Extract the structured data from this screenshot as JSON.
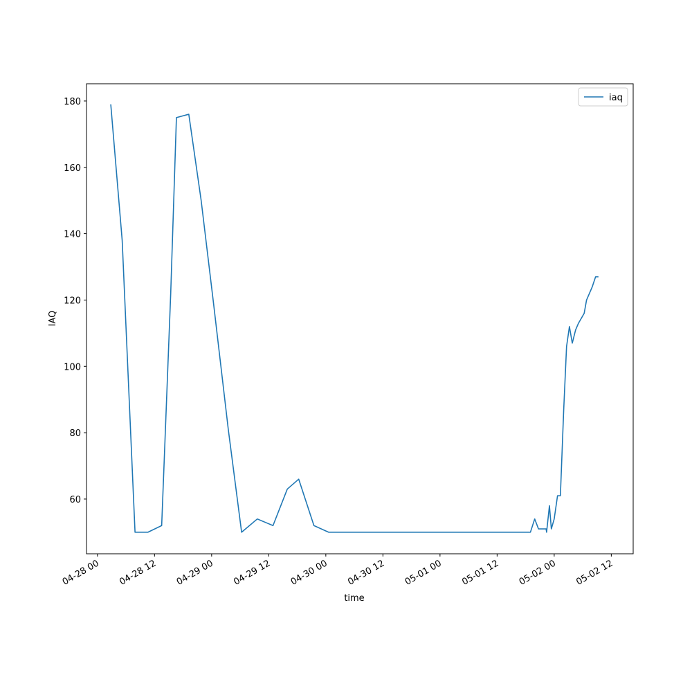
{
  "chart_data": {
    "type": "line",
    "x_label": "time",
    "y_label": "IAQ",
    "x": [
      "04-28 02:48",
      "04-28 05:12",
      "04-28 07:54",
      "04-28 10:36",
      "04-28 13:30",
      "04-28 15:24",
      "04-28 16:36",
      "04-28 19:12",
      "04-28 21:48",
      "04-29 00:24",
      "04-29 03:30",
      "04-29 06:18",
      "04-29 09:36",
      "04-29 12:54",
      "04-29 15:54",
      "04-29 18:18",
      "04-29 21:30",
      "04-30 00:36",
      "05-01 19:00",
      "05-01 19:54",
      "05-01 20:42",
      "05-01 21:48",
      "05-01 22:18",
      "05-01 22:24",
      "05-01 23:00",
      "05-01 23:24",
      "05-02 00:00",
      "05-02 00:42",
      "05-02 01:18",
      "05-02 02:00",
      "05-02 02:36",
      "05-02 03:12",
      "05-02 03:48",
      "05-02 04:30",
      "05-02 05:06",
      "05-02 06:18",
      "05-02 06:48",
      "05-02 08:00",
      "05-02 08:42",
      "05-02 09:18"
    ],
    "series": [
      {
        "name": "iaq",
        "color": "#1f77b4",
        "values": [
          179,
          138,
          50,
          50,
          52,
          122,
          175,
          176,
          150,
          119,
          81,
          50,
          54,
          52,
          63,
          66,
          52,
          50,
          50,
          54,
          51,
          51,
          51,
          50,
          58,
          51,
          54,
          61,
          61,
          87,
          106,
          112,
          107,
          111,
          113,
          116,
          120,
          124,
          127,
          127
        ]
      }
    ],
    "xlim": [
      "04-27 21:42",
      "05-02 16:36"
    ],
    "xticks": [
      "04-28 00",
      "04-28 12",
      "04-29 00",
      "04-29 12",
      "04-30 00",
      "04-30 12",
      "05-01 00",
      "05-01 12",
      "05-02 00",
      "05-02 12"
    ],
    "ylim": [
      43.5,
      185.2
    ],
    "yticks": [
      60,
      80,
      100,
      120,
      140,
      160,
      180
    ],
    "legend": "upper right"
  }
}
